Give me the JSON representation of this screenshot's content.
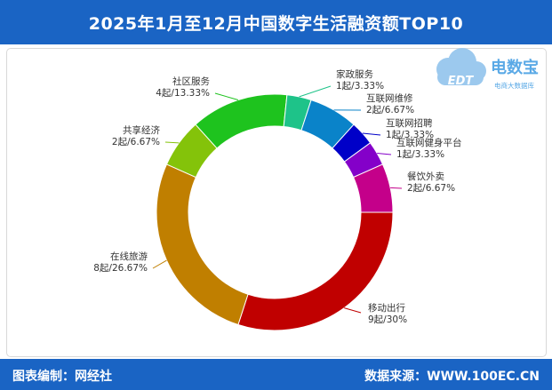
{
  "header": {
    "title": "2025年1月至12月中国数字生活融资额TOP10"
  },
  "footer": {
    "left": "图表编制：网经社",
    "right": "数据来源：WWW.100EC.CN"
  },
  "logo": {
    "brand": "电数宝",
    "sub": "电商大数据库",
    "mark": "EDT"
  },
  "colors": {
    "header": "#1a64c4",
    "footer": "#1a64c4"
  },
  "chart_data": {
    "type": "pie",
    "donut": true,
    "unit": "起",
    "series": [
      {
        "name": "移动出行",
        "value": 9,
        "percent": "30%",
        "label": "9起/30%",
        "color": "#c00000"
      },
      {
        "name": "在线旅游",
        "value": 8,
        "percent": "26.67%",
        "label": "8起/26.67%",
        "color": "#c07f00"
      },
      {
        "name": "共享经济",
        "value": 2,
        "percent": "6.67%",
        "label": "2起/6.67%",
        "color": "#84c30a"
      },
      {
        "name": "社区服务",
        "value": 4,
        "percent": "13.33%",
        "label": "4起/13.33%",
        "color": "#1ec31e"
      },
      {
        "name": "家政服务",
        "value": 1,
        "percent": "3.33%",
        "label": "1起/3.33%",
        "color": "#1ec389"
      },
      {
        "name": "互联网维修",
        "value": 2,
        "percent": "6.67%",
        "label": "2起/6.67%",
        "color": "#0a83c9"
      },
      {
        "name": "互联网招聘",
        "value": 1,
        "percent": "3.33%",
        "label": "1起/3.33%",
        "color": "#0000c8"
      },
      {
        "name": "互联网健身平台",
        "value": 1,
        "percent": "3.33%",
        "label": "1起/3.33%",
        "color": "#8400c9"
      },
      {
        "name": "餐饮外卖",
        "value": 2,
        "percent": "6.67%",
        "label": "2起/6.67%",
        "color": "#c4008a"
      }
    ]
  }
}
